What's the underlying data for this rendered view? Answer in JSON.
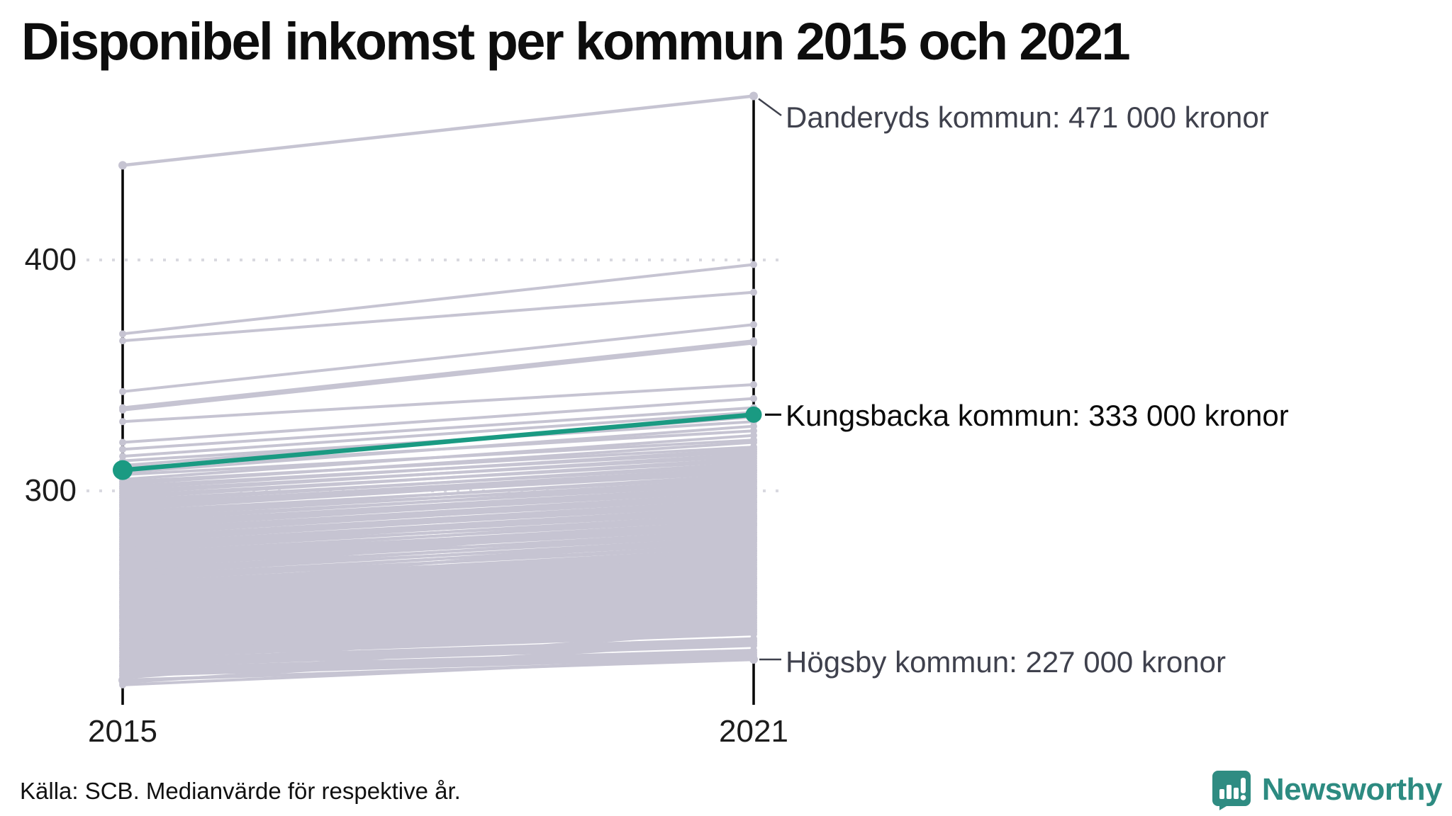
{
  "header": {
    "title": "Disponibel inkomst per kommun 2015 och 2021"
  },
  "axes": {
    "y_ticks": [
      "400",
      "300"
    ],
    "x_labels": [
      "2015",
      "2021"
    ]
  },
  "annotations": {
    "danderyd": {
      "label": "Danderyds kommun: 471 000 kronor"
    },
    "kungsbacka": {
      "label": "Kungsbacka kommun: 333 000 kronor"
    },
    "hogsby": {
      "label": "Högsby kommun: 227 000 kronor"
    }
  },
  "footer": {
    "source": "Källa: SCB. Medianvärde för respektive år.",
    "brand": "Newsworthy"
  },
  "colors": {
    "highlight_green": "#1a9a82",
    "line_gray": "#c6c4d2",
    "grid_dot": "#d9d9e0",
    "axis_black": "#000000",
    "annotation_dark": "#3f414d",
    "brand_teal": "#2f8c82"
  },
  "chart_data": {
    "type": "line",
    "subtype": "slopegraph",
    "title": "Disponibel inkomst per kommun 2015 och 2021",
    "x": [
      2015,
      2021
    ],
    "unit": "tusen kronor",
    "ylim": [
      210,
      480
    ],
    "yticks": [
      300,
      400
    ],
    "grid": "dotted-horizontal",
    "legend_position": "none",
    "series": [
      {
        "name": "Danderyds kommun",
        "values": [
          441,
          471
        ],
        "label": "Danderyds kommun: 471 000 kronor",
        "highlight": false
      },
      {
        "name": "Kungsbacka kommun",
        "values": [
          309,
          333
        ],
        "label": "Kungsbacka kommun: 333 000 kronor",
        "highlight": true
      },
      {
        "name": "Högsby kommun",
        "values": [
          218,
          227
        ],
        "label": "Högsby kommun: 227 000 kronor",
        "highlight": false
      }
    ],
    "background_pairs": [
      [
        368,
        398
      ],
      [
        365,
        386
      ],
      [
        343,
        372
      ],
      [
        336,
        365
      ],
      [
        335,
        364
      ],
      [
        330,
        346
      ],
      [
        321,
        340
      ],
      [
        318,
        336
      ],
      [
        315,
        334
      ],
      [
        313,
        330
      ],
      [
        311,
        332
      ],
      [
        310,
        326
      ],
      [
        308,
        328
      ],
      [
        307,
        322
      ],
      [
        305,
        324
      ],
      [
        304,
        319
      ],
      [
        303,
        321
      ],
      [
        302,
        317
      ],
      [
        301,
        318
      ],
      [
        300,
        315
      ],
      [
        299,
        316
      ],
      [
        298,
        313
      ],
      [
        297,
        314
      ],
      [
        296,
        311
      ],
      [
        295,
        312
      ],
      [
        294,
        309
      ],
      [
        294,
        310
      ],
      [
        293,
        308
      ],
      [
        292,
        309
      ],
      [
        291,
        306
      ],
      [
        290,
        307
      ],
      [
        290,
        304
      ],
      [
        289,
        305
      ],
      [
        288,
        303
      ],
      [
        287,
        304
      ],
      [
        286,
        301
      ],
      [
        286,
        302
      ],
      [
        285,
        300
      ],
      [
        284,
        301
      ],
      [
        283,
        298
      ],
      [
        283,
        299
      ],
      [
        282,
        297
      ],
      [
        281,
        298
      ],
      [
        280,
        295
      ],
      [
        280,
        296
      ],
      [
        279,
        294
      ],
      [
        278,
        295
      ],
      [
        277,
        292
      ],
      [
        277,
        293
      ],
      [
        276,
        291
      ],
      [
        275,
        292
      ],
      [
        275,
        289
      ],
      [
        274,
        290
      ],
      [
        273,
        288
      ],
      [
        272,
        289
      ],
      [
        272,
        286
      ],
      [
        271,
        287
      ],
      [
        270,
        285
      ],
      [
        270,
        286
      ],
      [
        269,
        284
      ],
      [
        268,
        285
      ],
      [
        268,
        282
      ],
      [
        267,
        283
      ],
      [
        266,
        281
      ],
      [
        265,
        282
      ],
      [
        265,
        279
      ],
      [
        264,
        280
      ],
      [
        263,
        278
      ],
      [
        262,
        279
      ],
      [
        262,
        276
      ],
      [
        261,
        277
      ],
      [
        260,
        275
      ],
      [
        260,
        274
      ],
      [
        259,
        273
      ],
      [
        258,
        272
      ],
      [
        257,
        271
      ],
      [
        256,
        270
      ],
      [
        255,
        269
      ],
      [
        255,
        268
      ],
      [
        254,
        267
      ],
      [
        253,
        266
      ],
      [
        252,
        265
      ],
      [
        251,
        264
      ],
      [
        250,
        263
      ],
      [
        250,
        262
      ],
      [
        249,
        261
      ],
      [
        248,
        260
      ],
      [
        247,
        259
      ],
      [
        246,
        258
      ],
      [
        245,
        257
      ],
      [
        245,
        256
      ],
      [
        244,
        255
      ],
      [
        243,
        254
      ],
      [
        242,
        253
      ],
      [
        241,
        252
      ],
      [
        240,
        251
      ],
      [
        240,
        250
      ],
      [
        239,
        249
      ],
      [
        238,
        248
      ],
      [
        237,
        247
      ],
      [
        236,
        246
      ],
      [
        235,
        245
      ],
      [
        234,
        244
      ],
      [
        233,
        243
      ],
      [
        232,
        242
      ],
      [
        231,
        241
      ],
      [
        230,
        240
      ],
      [
        229,
        239
      ],
      [
        228,
        238
      ],
      [
        227,
        236
      ],
      [
        226,
        235
      ],
      [
        225,
        234
      ],
      [
        224,
        233
      ],
      [
        223,
        231
      ],
      [
        222,
        230
      ],
      [
        221,
        229
      ],
      [
        220,
        228
      ],
      [
        236,
        258
      ],
      [
        242,
        262
      ],
      [
        228,
        252
      ],
      [
        232,
        255
      ],
      [
        246,
        270
      ],
      [
        252,
        274
      ],
      [
        258,
        280
      ],
      [
        264,
        288
      ],
      [
        248,
        266
      ],
      [
        224,
        245
      ],
      [
        219,
        240
      ],
      [
        217,
        235
      ],
      [
        216,
        228
      ]
    ]
  }
}
